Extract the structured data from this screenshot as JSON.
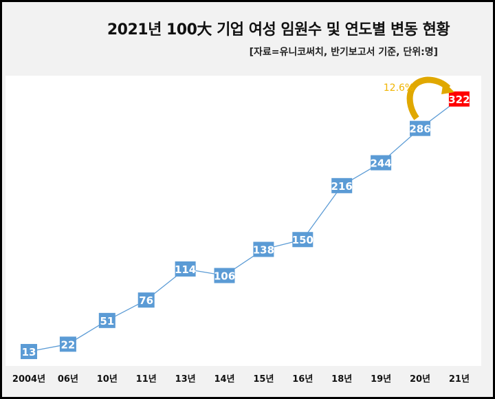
{
  "chart_data": {
    "type": "line",
    "title": "2021년 100大 기업 여성 임원수 및 연도별 변동 현황",
    "subtitle": "[자료=유니코써치, 반기보고서 기준, 단위:명]",
    "categories": [
      "2004년",
      "06년",
      "10년",
      "11년",
      "13년",
      "14년",
      "15년",
      "16년",
      "18년",
      "19년",
      "20년",
      "21년"
    ],
    "values": [
      13,
      22,
      51,
      76,
      114,
      106,
      138,
      150,
      216,
      244,
      286,
      322
    ],
    "annotation": "12.6%",
    "grid": false,
    "colors": {
      "line": "#5b9bd5",
      "marker": "#5b9bd5",
      "highlight": "#ff0000",
      "annotation": "#f0b400",
      "arrow": "#e0a800"
    }
  }
}
